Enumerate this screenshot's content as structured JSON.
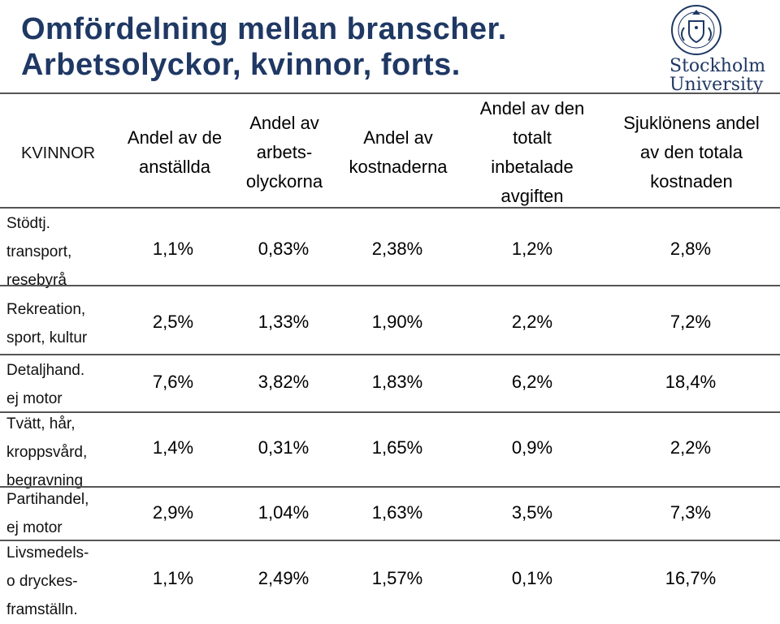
{
  "title": {
    "line1": "Omfördelning mellan branscher.",
    "line2": "Arbetsolyckor, kvinnor, forts."
  },
  "logo": {
    "line1": "Stockholm",
    "line2": "University",
    "emblem_icon": "university-seal-icon"
  },
  "table": {
    "corner_label": "KVINNOR",
    "headers": [
      [
        "Andel av de",
        "anställda"
      ],
      [
        "Andel av",
        "arbets-",
        "olyckorna"
      ],
      [
        "Andel av",
        "kostnaderna"
      ],
      [
        "Andel av den",
        "totalt",
        "inbetalade",
        "avgiften"
      ],
      [
        "Sjuklönens andel",
        "av den totala",
        "kostnaden"
      ]
    ],
    "rows": [
      {
        "label": [
          "Stödtj.",
          "transport,",
          "resebyrå"
        ],
        "values": [
          "1,1%",
          "0,83%",
          "2,38%",
          "1,2%",
          "2,8%"
        ]
      },
      {
        "label": [
          "Rekreation,",
          "sport, kultur"
        ],
        "values": [
          "2,5%",
          "1,33%",
          "1,90%",
          "2,2%",
          "7,2%"
        ]
      },
      {
        "label": [
          "Detaljhand.",
          "ej motor"
        ],
        "values": [
          "7,6%",
          "3,82%",
          "1,83%",
          "6,2%",
          "18,4%"
        ]
      },
      {
        "label": [
          "Tvätt, hår,",
          "kroppsvård,",
          "begravning"
        ],
        "values": [
          "1,4%",
          "0,31%",
          "1,65%",
          "0,9%",
          "2,2%"
        ]
      },
      {
        "label": [
          "Partihandel,",
          "ej motor"
        ],
        "values": [
          "2,9%",
          "1,04%",
          "1,63%",
          "3,5%",
          "7,3%"
        ]
      },
      {
        "label": [
          "Livsmedels-",
          "o dryckes-",
          "framställn."
        ],
        "values": [
          "1,1%",
          "2,49%",
          "1,57%",
          "0,1%",
          "16,7%"
        ]
      }
    ]
  },
  "colors": {
    "title": "#1f3864",
    "rule": "#555555"
  }
}
